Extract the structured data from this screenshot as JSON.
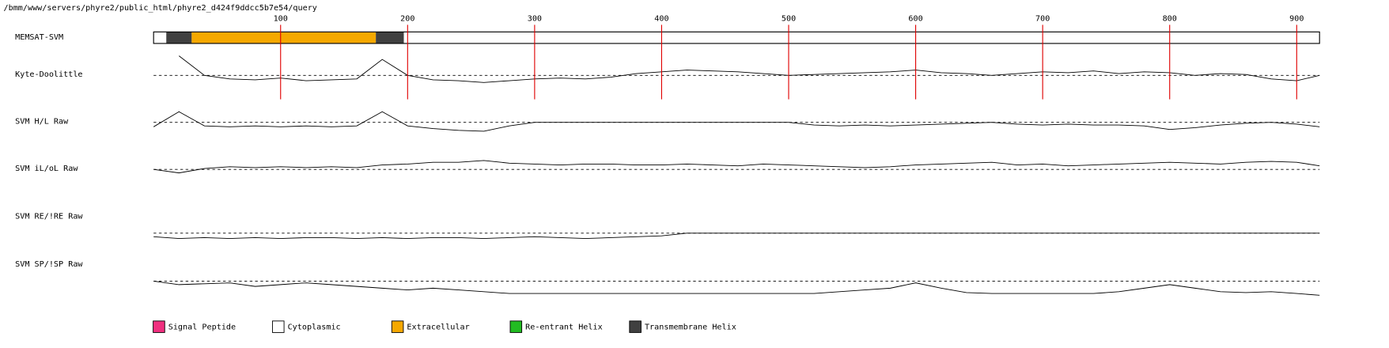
{
  "path": "/bmm/www/servers/phyre2/public_html/phyre2_d424f9ddcc5b7e54/query",
  "chart_data": {
    "type": "line",
    "xlim": [
      0,
      918
    ],
    "xticks": [
      100,
      200,
      300,
      400,
      500,
      600,
      700,
      800,
      900
    ],
    "ylim": [
      -30,
      30
    ],
    "memsat": {
      "name": "MEMSAT-SVM",
      "segments": [
        {
          "start": 0,
          "end": 10,
          "color": "#ffffff"
        },
        {
          "start": 10,
          "end": 30,
          "color": "#404040"
        },
        {
          "start": 30,
          "end": 175,
          "color": "#f5a800"
        },
        {
          "start": 175,
          "end": 197,
          "color": "#404040"
        },
        {
          "start": 197,
          "end": 918,
          "color": "#ffffff"
        }
      ]
    },
    "x": [
      0,
      20,
      40,
      60,
      80,
      100,
      120,
      140,
      160,
      180,
      200,
      220,
      240,
      260,
      280,
      300,
      320,
      340,
      360,
      380,
      400,
      420,
      440,
      460,
      480,
      500,
      520,
      540,
      560,
      580,
      600,
      620,
      640,
      660,
      680,
      700,
      720,
      740,
      760,
      780,
      800,
      820,
      840,
      860,
      880,
      900,
      918
    ],
    "series": [
      {
        "name": "Kyte-Doolittle",
        "values": [
          null,
          22,
          0,
          -4,
          -5,
          -3,
          -6,
          -5,
          -4,
          18,
          0,
          -5,
          -6,
          -8,
          -6,
          -4,
          -3,
          -4,
          -2,
          2,
          4,
          6,
          5,
          4,
          2,
          0,
          1,
          2,
          3,
          4,
          6,
          3,
          2,
          0,
          2,
          4,
          3,
          5,
          2,
          4,
          3,
          0,
          2,
          1,
          -4,
          -6,
          0
        ]
      },
      {
        "name": "SVM H/L Raw",
        "values": [
          -5,
          12,
          -4,
          -5,
          -4,
          -5,
          -4,
          -5,
          -4,
          12,
          -4,
          -7,
          -9,
          -10,
          -4,
          0,
          0,
          0,
          0,
          0,
          0,
          0,
          0,
          0,
          0,
          0,
          -3,
          -4,
          -3,
          -4,
          -3,
          -2,
          -1,
          0,
          -2,
          -3,
          -2,
          -3,
          -3,
          -4,
          -8,
          -6,
          -3,
          -1,
          0,
          -2,
          -5
        ]
      },
      {
        "name": "SVM iL/oL Raw",
        "values": [
          0,
          -4,
          1,
          3,
          2,
          3,
          2,
          3,
          2,
          5,
          6,
          8,
          8,
          10,
          7,
          6,
          5,
          6,
          6,
          5,
          5,
          6,
          5,
          4,
          6,
          5,
          4,
          3,
          2,
          3,
          5,
          6,
          7,
          8,
          5,
          6,
          4,
          5,
          6,
          7,
          8,
          7,
          6,
          8,
          9,
          8,
          4
        ]
      },
      {
        "name": "SVM RE/!RE Raw",
        "values": [
          -4,
          -6,
          -5,
          -6,
          -5,
          -6,
          -5,
          -5,
          -6,
          -5,
          -6,
          -5,
          -5,
          -6,
          -5,
          -4,
          -5,
          -6,
          -5,
          -4,
          -3,
          0,
          0,
          0,
          0,
          0,
          0,
          0,
          0,
          0,
          0,
          0,
          0,
          0,
          0,
          0,
          0,
          0,
          0,
          0,
          0,
          0,
          0,
          0,
          0,
          0,
          0
        ]
      },
      {
        "name": "SVM SP/!SP Raw",
        "values": [
          0,
          -4,
          -3,
          -2,
          -6,
          -4,
          -2,
          -4,
          -6,
          -8,
          -10,
          -8,
          -10,
          -12,
          -14,
          -14,
          -14,
          -14,
          -14,
          -14,
          -14,
          -14,
          -14,
          -14,
          -14,
          -14,
          -14,
          -12,
          -10,
          -8,
          -2,
          -8,
          -13,
          -14,
          -14,
          -14,
          -14,
          -14,
          -12,
          -8,
          -4,
          -8,
          -12,
          -13,
          -12,
          -14,
          -16
        ]
      }
    ],
    "legend": [
      {
        "name": "Signal Peptide",
        "color": "#f0307f"
      },
      {
        "name": "Cytoplasmic",
        "color": "#ffffff"
      },
      {
        "name": "Extracellular",
        "color": "#f5a800"
      },
      {
        "name": "Re-entrant Helix",
        "color": "#22bb22"
      },
      {
        "name": "Transmembrane Helix",
        "color": "#404040"
      }
    ]
  }
}
